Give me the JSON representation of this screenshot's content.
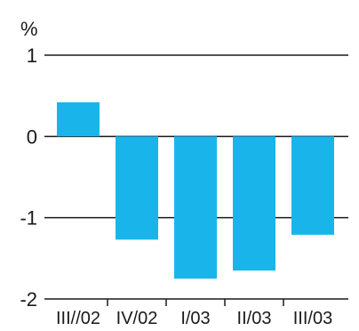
{
  "chart_data": {
    "type": "bar",
    "unit_label": "%",
    "categories": [
      "III//02",
      "IV/02",
      "I/03",
      "II/03",
      "III/03"
    ],
    "values": [
      0.42,
      -1.27,
      -1.75,
      -1.65,
      -1.21
    ],
    "ylim": [
      -2,
      1
    ],
    "yticks": [
      1,
      0,
      -1,
      -2
    ],
    "ytick_labels": [
      "1",
      "0",
      "-1",
      "-2"
    ],
    "grid": true,
    "bar_color": "#19b5ea",
    "grid_color": "#1a1a1a"
  }
}
